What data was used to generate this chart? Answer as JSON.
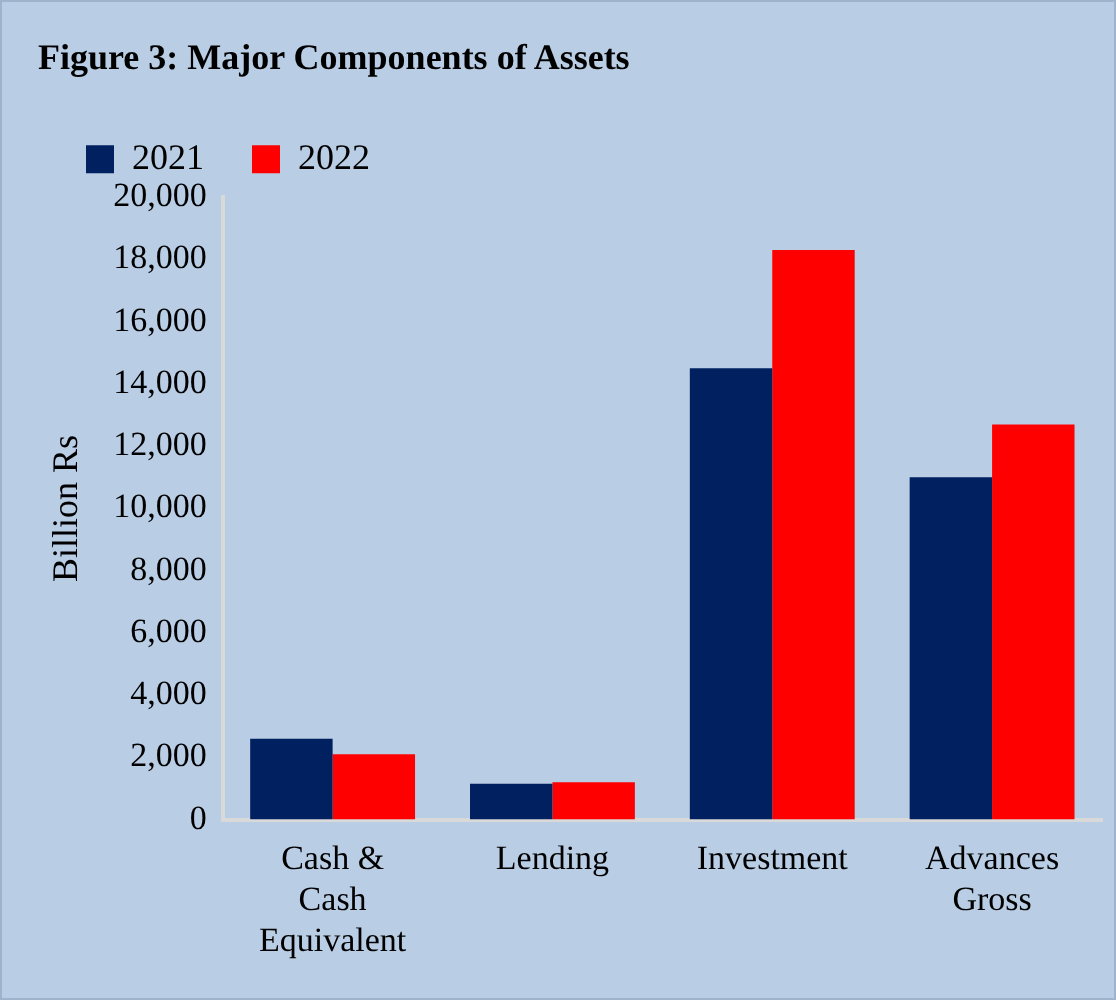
{
  "chart_data": {
    "type": "bar",
    "title": "Figure 3: Major Components of Assets",
    "ylabel": "Billion Rs",
    "categories": [
      "Cash & Cash Equivalent",
      "Lending",
      "Investment",
      "Advances Gross"
    ],
    "series": [
      {
        "name": "2021",
        "color": "#002060",
        "values": [
          2600,
          1150,
          14500,
          11000
        ]
      },
      {
        "name": "2022",
        "color": "#ff0000",
        "values": [
          2100,
          1200,
          18300,
          12700
        ]
      }
    ],
    "ylim": [
      0,
      20000
    ],
    "yticks": [
      0,
      {
        "value": 2000,
        "label": "2,000"
      },
      {
        "value": 4000,
        "label": "4,000"
      },
      {
        "value": 6000,
        "label": "6,000"
      },
      {
        "value": 8000,
        "label": "8,000"
      },
      {
        "value": 10000,
        "label": "10,000"
      },
      {
        "value": 12000,
        "label": "12,000"
      },
      {
        "value": 14000,
        "label": "14,000"
      },
      {
        "value": 16000,
        "label": "16,000"
      },
      {
        "value": 18000,
        "label": "18,000"
      },
      {
        "value": 20000,
        "label": "20,000"
      }
    ],
    "grid": false,
    "legend": "top left"
  }
}
